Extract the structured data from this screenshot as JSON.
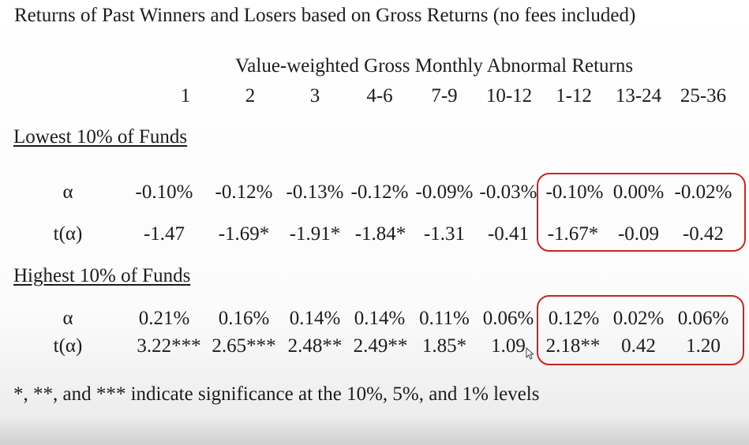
{
  "title": "Returns of Past Winners and Losers based on Gross Returns (no fees included)",
  "subtitle": "Value-weighted Gross Monthly Abnormal Returns",
  "columns": [
    "1",
    "2",
    "3",
    "4-6",
    "7-9",
    "10-12",
    "1-12",
    "13-24",
    "25-36"
  ],
  "sections": [
    {
      "heading": "Lowest 10% of Funds",
      "rows": [
        {
          "label": "α",
          "values": [
            "-0.10%",
            "-0.12%",
            "-0.13%",
            "-0.12%",
            "-0.09%",
            "-0.03%",
            "-0.10%",
            "0.00%",
            "-0.02%"
          ]
        },
        {
          "label": "t(α)",
          "values": [
            "-1.47",
            "-1.69*",
            "-1.91*",
            "-1.84*",
            "-1.31",
            "-0.41",
            "-1.67*",
            "-0.09",
            "-0.42"
          ]
        }
      ]
    },
    {
      "heading": "Highest 10% of Funds",
      "rows": [
        {
          "label": "α",
          "values": [
            "0.21%",
            "0.16%",
            "0.14%",
            "0.14%",
            "0.11%",
            "0.06%",
            "0.12%",
            "0.02%",
            "0.06%"
          ]
        },
        {
          "label": "t(α)",
          "values": [
            "3.22***",
            "2.65***",
            "2.48**",
            "2.49**",
            "1.85*",
            "1.09",
            "2.18**",
            "0.42",
            "1.20"
          ]
        }
      ]
    }
  ],
  "footnote": "*, **, and *** indicate significance at the 10%, 5%, and 1% levels",
  "highlight_color": "#c8241f"
}
